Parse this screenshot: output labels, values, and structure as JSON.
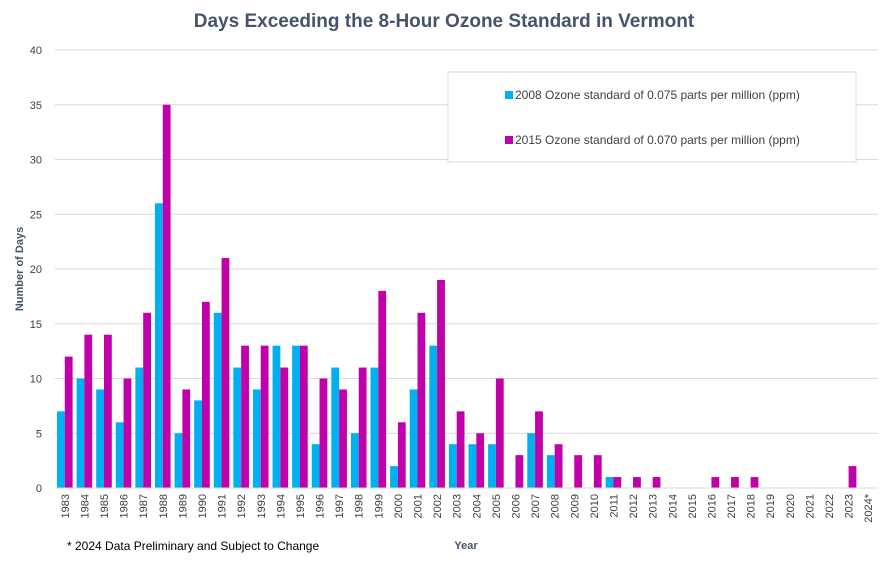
{
  "chart_data": {
    "type": "bar",
    "title": "Days Exceeding the 8-Hour Ozone Standard in Vermont",
    "xlabel": "Year",
    "ylabel": "Number of Days",
    "ylim": [
      0,
      40
    ],
    "yticks": [
      0,
      5,
      10,
      15,
      20,
      25,
      30,
      35,
      40
    ],
    "grid": true,
    "legend_position": "top-right",
    "footnote": "* 2024 Data Preliminary and Subject to Change",
    "categories": [
      "1983",
      "1984",
      "1985",
      "1986",
      "1987",
      "1988",
      "1989",
      "1990",
      "1991",
      "1992",
      "1993",
      "1994",
      "1995",
      "1996",
      "1997",
      "1998",
      "1999",
      "2000",
      "2001",
      "2002",
      "2003",
      "2004",
      "2005",
      "2006",
      "2007",
      "2008",
      "2009",
      "2010",
      "2011",
      "2012",
      "2013",
      "2014",
      "2015",
      "2016",
      "2017",
      "2018",
      "2019",
      "2020",
      "2021",
      "2022",
      "2023",
      "2024*"
    ],
    "series": [
      {
        "name": "2008 Ozone standard of 0.075 parts per million (ppm)",
        "color": "#00b0f0",
        "values": [
          7,
          10,
          9,
          6,
          11,
          26,
          5,
          8,
          16,
          11,
          9,
          13,
          13,
          4,
          11,
          5,
          11,
          2,
          9,
          13,
          4,
          4,
          4,
          0,
          5,
          3,
          0,
          0,
          1,
          0,
          0,
          0,
          0,
          0,
          0,
          0,
          0,
          0,
          0,
          0,
          0,
          0
        ]
      },
      {
        "name": "2015 Ozone standard of 0.070 parts per million (ppm)",
        "color": "#c000a8",
        "values": [
          12,
          14,
          14,
          10,
          16,
          35,
          9,
          17,
          21,
          13,
          13,
          11,
          13,
          10,
          9,
          11,
          18,
          6,
          16,
          19,
          7,
          5,
          10,
          3,
          7,
          4,
          3,
          3,
          1,
          1,
          1,
          0,
          0,
          1,
          1,
          1,
          0,
          0,
          0,
          0,
          2,
          0
        ]
      }
    ]
  }
}
